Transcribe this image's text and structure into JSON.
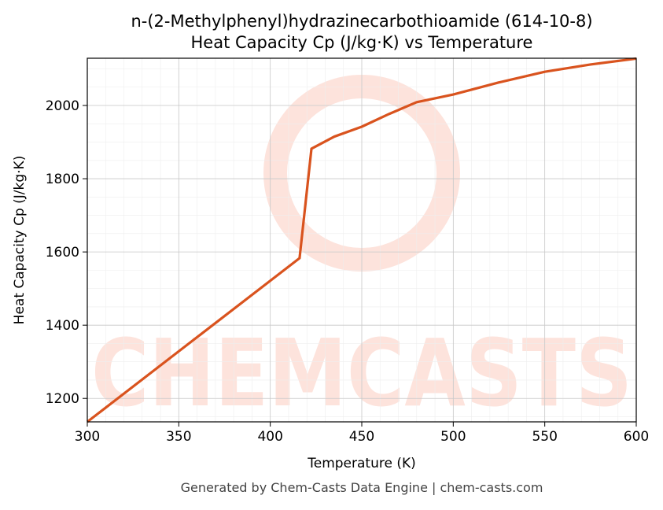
{
  "chart_data": {
    "type": "line",
    "title": "n-(2-Methylphenyl)hydrazinecarbothioamide (614-10-8)",
    "subtitle": "Heat Capacity Cp (J/kg·K) vs Temperature",
    "x_label": "Temperature (K)",
    "y_label": "Heat Capacity Cp (J/kg·K)",
    "footer": "Generated by Chem-Casts Data Engine | chem-casts.com",
    "watermark": "CHEMCASTS",
    "series": [
      {
        "name": "Cp",
        "color": "#d9531e",
        "x": [
          300,
          416,
          422.5,
          435,
          450,
          465,
          480,
          500,
          525,
          550,
          575,
          600
        ],
        "values": [
          1136,
          1583,
          1882,
          1915,
          1942,
          1977,
          2009,
          2030,
          2063,
          2092,
          2112,
          2128
        ]
      }
    ],
    "xlim": [
      300,
      600
    ],
    "xticks": [
      300,
      350,
      400,
      450,
      500,
      550,
      600
    ],
    "ylim": [
      1136,
      2129
    ],
    "yticks": [
      1200,
      1400,
      1600,
      1800,
      2000
    ],
    "grid": true
  }
}
